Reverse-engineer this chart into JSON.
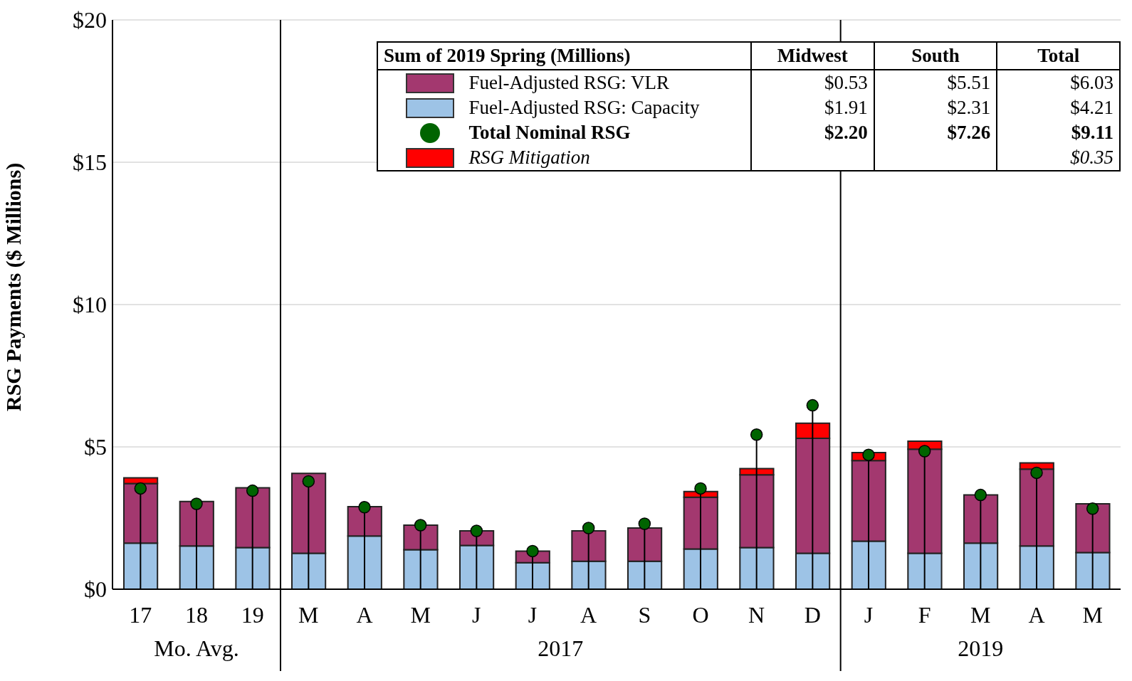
{
  "chart_data": {
    "type": "bar",
    "stacked": true,
    "ylabel": "RSG Payments ($ Millions)",
    "legend_title": "Sum of 2019 Spring (Millions)",
    "categories": [
      "17",
      "18",
      "19",
      "M",
      "A",
      "M",
      "J",
      "J",
      "A",
      "S",
      "O",
      "N",
      "D",
      "J",
      "F",
      "M",
      "A",
      "M"
    ],
    "series": [
      {
        "name": "Fuel-Adjusted RSG: Capacity",
        "color": "#9dc3e6",
        "values": [
          1.62,
          1.52,
          1.46,
          1.26,
          1.87,
          1.39,
          1.54,
          0.93,
          0.98,
          0.98,
          1.41,
          1.46,
          1.26,
          1.69,
          1.26,
          1.62,
          1.52,
          1.29
        ]
      },
      {
        "name": "Fuel-Adjusted RSG: VLR",
        "color": "#a3386f",
        "values": [
          2.09,
          1.56,
          2.1,
          2.81,
          1.03,
          0.86,
          0.51,
          0.41,
          1.07,
          1.17,
          1.82,
          2.56,
          4.04,
          2.83,
          3.66,
          1.69,
          2.7,
          1.71
        ]
      },
      {
        "name": "RSG Mitigation",
        "color": "#ff0000",
        "values": [
          0.2,
          0,
          0,
          0,
          0,
          0,
          0,
          0,
          0,
          0,
          0.2,
          0.22,
          0.53,
          0.28,
          0.28,
          0,
          0.22,
          0
        ]
      },
      {
        "name": "Total Nominal RSG",
        "type": "scatter",
        "color": "#006400",
        "values": [
          3.54,
          3.0,
          3.46,
          3.79,
          2.88,
          2.25,
          2.05,
          1.34,
          2.15,
          2.3,
          3.54,
          5.43,
          6.46,
          4.72,
          4.85,
          3.31,
          4.09,
          2.83
        ]
      }
    ],
    "ylim": [
      0,
      20
    ],
    "yticks": [
      {
        "value": 0,
        "label": "$0"
      },
      {
        "value": 5,
        "label": "$5"
      },
      {
        "value": 10,
        "label": "$10"
      },
      {
        "value": 15,
        "label": "$15"
      },
      {
        "value": 20,
        "label": "$20"
      }
    ],
    "grid": "y",
    "legend": "top",
    "marker": "circle",
    "annotations": [
      "Mo. Avg.",
      "2017",
      "2019",
      "Midwest",
      "South",
      "Total",
      "$1.91",
      "$2.31",
      "$4.21",
      "$0.53",
      "$5.51",
      "$6.03",
      "$0.35",
      "$2.20",
      "$7.26",
      "$9.11"
    ]
  }
}
